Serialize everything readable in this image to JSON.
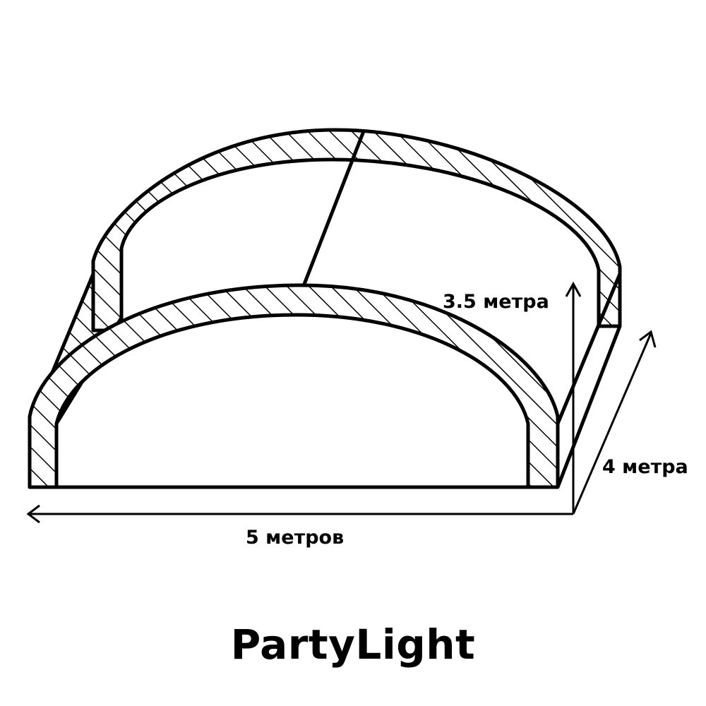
{
  "dimensions": {
    "height_label": "3.5 метра",
    "depth_label": "4 метра",
    "width_label": "5 метров"
  },
  "brand": {
    "name": "PartyLight"
  },
  "colors": {
    "line": "#000000",
    "background": "#ffffff"
  }
}
